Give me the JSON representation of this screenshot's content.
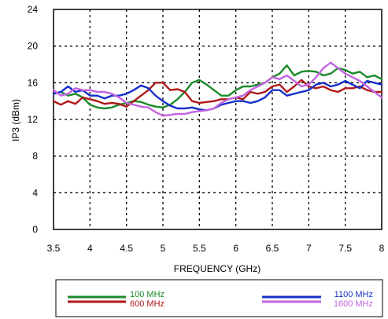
{
  "chart_data": {
    "type": "line",
    "xlabel": "FREQUENCY (GHz)",
    "ylabel": "IP3 (dBm)",
    "xlim": [
      3.5,
      8
    ],
    "ylim": [
      0,
      24
    ],
    "x_ticks": [
      "3.5",
      "4",
      "4.5",
      "5",
      "5.5",
      "6",
      "6.5",
      "7",
      "7.5",
      "8"
    ],
    "y_ticks": [
      "0",
      "4",
      "8",
      "12",
      "16",
      "20",
      "24"
    ],
    "grid": true,
    "grid_style": "dotted",
    "legend_position": "bottom",
    "x": [
      3.5,
      3.6,
      3.7,
      3.8,
      3.9,
      4.0,
      4.1,
      4.2,
      4.3,
      4.4,
      4.5,
      4.6,
      4.7,
      4.8,
      4.9,
      5.0,
      5.1,
      5.2,
      5.3,
      5.4,
      5.5,
      5.6,
      5.7,
      5.8,
      5.9,
      6.0,
      6.1,
      6.2,
      6.3,
      6.4,
      6.5,
      6.6,
      6.7,
      6.8,
      6.9,
      7.0,
      7.1,
      7.2,
      7.3,
      7.4,
      7.5,
      7.6,
      7.7,
      7.8,
      7.9,
      8.0
    ],
    "series": [
      {
        "name": "100 MHz",
        "color": "#1a8a2a",
        "values": [
          14.8,
          15.0,
          14.6,
          14.8,
          14.4,
          13.6,
          13.3,
          13.2,
          13.3,
          13.6,
          13.8,
          14.0,
          13.9,
          13.6,
          13.4,
          13.3,
          13.6,
          14.2,
          15.0,
          16.0,
          16.3,
          15.8,
          15.2,
          14.6,
          14.6,
          15.2,
          15.6,
          15.6,
          15.8,
          16.0,
          16.6,
          17.0,
          17.9,
          16.8,
          17.2,
          17.3,
          17.2,
          16.8,
          17.0,
          17.6,
          17.4,
          17.0,
          17.2,
          16.6,
          16.8,
          16.4
        ]
      },
      {
        "name": "600 MHz",
        "color": "#b01818",
        "values": [
          14.0,
          13.6,
          14.0,
          13.7,
          14.4,
          14.2,
          14.0,
          13.7,
          13.8,
          13.7,
          13.4,
          14.0,
          14.6,
          15.2,
          16.0,
          16.0,
          15.2,
          15.3,
          15.0,
          14.0,
          13.8,
          13.9,
          14.0,
          14.2,
          14.2,
          14.4,
          14.2,
          15.0,
          14.8,
          15.0,
          15.6,
          15.8,
          15.0,
          15.6,
          16.3,
          15.6,
          15.4,
          15.6,
          15.2,
          15.0,
          15.4,
          15.4,
          15.6,
          15.2,
          15.0,
          15.0
        ]
      },
      {
        "name": "1100 MHz",
        "color": "#1530c8",
        "values": [
          14.8,
          15.0,
          15.6,
          15.0,
          15.2,
          14.6,
          14.6,
          14.3,
          14.6,
          14.6,
          14.8,
          15.2,
          15.7,
          15.4,
          14.6,
          14.0,
          13.5,
          13.2,
          13.2,
          13.3,
          13.1,
          13.0,
          13.2,
          13.6,
          13.8,
          14.0,
          14.0,
          13.8,
          14.0,
          14.4,
          15.2,
          15.2,
          14.6,
          14.8,
          15.0,
          15.2,
          15.8,
          16.0,
          15.6,
          15.8,
          16.2,
          15.8,
          15.4,
          16.2,
          16.0,
          15.8
        ]
      },
      {
        "name": "1600 MHz",
        "color": "#c463e0",
        "values": [
          15.2,
          14.6,
          14.8,
          15.4,
          15.2,
          15.2,
          15.0,
          15.0,
          14.8,
          14.4,
          13.8,
          13.6,
          13.4,
          13.3,
          12.8,
          12.4,
          12.5,
          12.6,
          12.6,
          12.8,
          12.9,
          13.0,
          13.2,
          13.8,
          14.2,
          14.4,
          14.6,
          15.2,
          15.6,
          16.0,
          16.6,
          16.4,
          16.8,
          16.2,
          15.6,
          15.8,
          16.6,
          17.6,
          18.2,
          17.6,
          17.0,
          16.6,
          16.2,
          15.6,
          15.0,
          14.4
        ]
      }
    ]
  }
}
